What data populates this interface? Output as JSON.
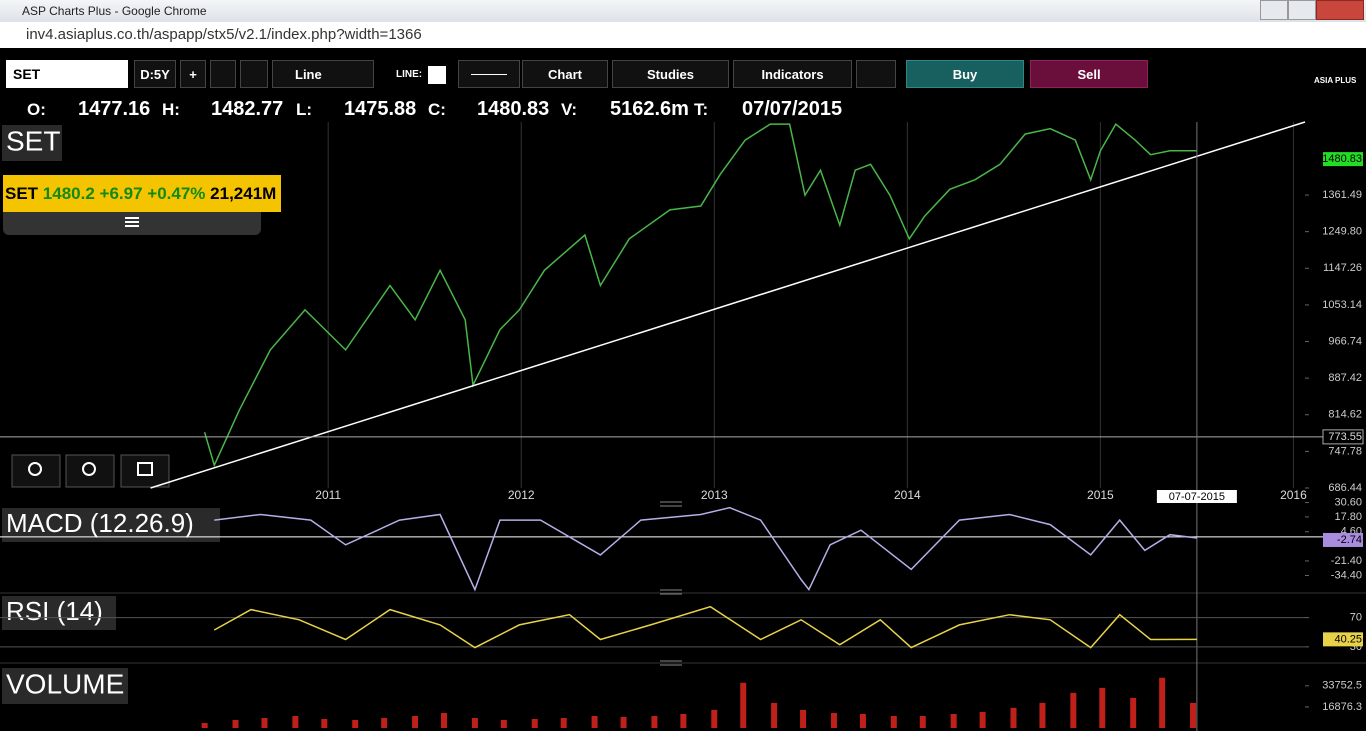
{
  "browser": {
    "title": "ASP Charts Plus - Google Chrome",
    "url": "inv4.asiaplus.co.th/aspapp/stx5/v2.1/index.php?width=1366"
  },
  "toolbar": {
    "symbol": "SET",
    "period": "D:5Y",
    "plus": "+",
    "line": "Line",
    "line_label": "LINE:",
    "chart": "Chart",
    "studies": "Studies",
    "indicators": "Indicators",
    "buy": "Buy",
    "sell": "Sell",
    "logo": "ASIA PLUS"
  },
  "quote": {
    "open_label": "O:",
    "open": 1477.16,
    "high_label": "H:",
    "high": 1482.77,
    "low_label": "L:",
    "low": 1475.88,
    "close_label": "C:",
    "close": 1480.83,
    "volume_label": "V:",
    "volume": "5162.6m",
    "time_label": "T:",
    "time": "07/07/2015"
  },
  "ticker": {
    "symbol": "SET",
    "last": 1480.2,
    "change": "+6.97",
    "percent": "+0.47%",
    "value": "21,241M"
  },
  "chart_data": [
    {
      "type": "line",
      "title": "SET",
      "log": true,
      "color": "#49b649",
      "x": [
        2010.36,
        2010.41,
        2010.54,
        2010.7,
        2010.88,
        2011.09,
        2011.32,
        2011.45,
        2011.58,
        2011.71,
        2011.75,
        2011.89,
        2011.99,
        2012.12,
        2012.33,
        2012.41,
        2012.56,
        2012.77,
        2012.93,
        2013.03,
        2013.16,
        2013.29,
        2013.39,
        2013.47,
        2013.55,
        2013.65,
        2013.73,
        2013.81,
        2013.91,
        2014.01,
        2014.09,
        2014.22,
        2014.35,
        2014.48,
        2014.61,
        2014.74,
        2014.87,
        2014.95,
        2015.0,
        2015.08,
        2015.18,
        2015.26,
        2015.36,
        2015.5
      ],
      "values": [
        782,
        724,
        824,
        948,
        1041,
        948,
        1102,
        1017,
        1142,
        1017,
        873,
        994,
        1041,
        1142,
        1240,
        1102,
        1229,
        1315,
        1327,
        1428,
        1548,
        1607,
        1607,
        1361,
        1443,
        1269,
        1443,
        1463,
        1361,
        1229,
        1296,
        1380,
        1411,
        1463,
        1570,
        1590,
        1548,
        1411,
        1510,
        1607,
        1548,
        1496,
        1510,
        1510
      ],
      "xlim": [
        2009.3,
        2016.06
      ],
      "xticks": [
        2011,
        2012,
        2013,
        2014,
        2015,
        2016
      ],
      "xgrid": true,
      "ylim": [
        686.44,
        1615
      ],
      "yticks": [
        1361.49,
        {
          "value": 1249.8,
          "label": "1249.80"
        },
        1147.26,
        1053.14,
        966.74,
        887.42,
        814.62,
        747.78,
        686.44
      ],
      "last_label": 1480.83,
      "last_label_color": "#22dd22",
      "level": 773.55,
      "trendline": {
        "x": [
          2010.08,
          2016.06
        ],
        "y": [
          686.44,
          1615
        ]
      },
      "cursor_x": 2015.5,
      "cursor_label": "07-07-2015"
    },
    {
      "type": "line",
      "title": "MACD (12.26.9)",
      "color": "#b7aee8",
      "x": [
        2010.41,
        2010.65,
        2010.91,
        2011.09,
        2011.37,
        2011.58,
        2011.76,
        2011.89,
        2012.1,
        2012.41,
        2012.62,
        2012.93,
        2013.08,
        2013.24,
        2013.45,
        2013.49,
        2013.6,
        2013.76,
        2014.02,
        2014.27,
        2014.53,
        2014.74,
        2014.95,
        2015.1,
        2015.23,
        2015.36,
        2015.5
      ],
      "values": [
        15,
        20,
        15,
        -7,
        15,
        20,
        -47,
        15,
        15,
        -16,
        15,
        20,
        26,
        15,
        -38,
        -47,
        -7,
        6,
        -29,
        15,
        20,
        11,
        -16,
        15,
        -12,
        2,
        -1
      ],
      "ylim": [
        -50,
        32
      ],
      "yticks": [
        {
          "value": 30.6,
          "label": "30.60"
        },
        {
          "value": 17.8,
          "label": "17.80"
        },
        {
          "value": 4.6,
          "label": "4.60"
        },
        {
          "value": -21.4,
          "label": "-21.40"
        },
        {
          "value": -34.4,
          "label": "-34.40"
        }
      ],
      "last_label": -2.74,
      "last_label_color": "#a98be0"
    },
    {
      "type": "line",
      "title": "RSI (14)",
      "color": "#e8d24a",
      "grid": true,
      "x": [
        2010.41,
        2010.6,
        2010.85,
        2011.09,
        2011.32,
        2011.58,
        2011.76,
        2011.99,
        2012.25,
        2012.41,
        2012.67,
        2012.98,
        2013.24,
        2013.45,
        2013.65,
        2013.86,
        2014.02,
        2014.27,
        2014.53,
        2014.74,
        2014.95,
        2015.1,
        2015.26,
        2015.5
      ],
      "values": [
        53,
        81,
        67,
        40,
        81,
        60,
        29,
        60,
        74,
        40,
        60,
        85,
        40,
        67,
        33,
        67,
        29,
        60,
        74,
        67,
        29,
        74,
        40,
        40.25
      ],
      "ylim": [
        12,
        90
      ],
      "yticks": [
        70,
        30
      ],
      "last_label": 40.25,
      "last_label_color": "#e8d24a"
    },
    {
      "type": "bar",
      "title": "VOLUME",
      "color": "#c0201a",
      "x": [
        2010.36,
        2010.52,
        2010.67,
        2010.83,
        2010.98,
        2011.14,
        2011.29,
        2011.45,
        2011.6,
        2011.76,
        2011.91,
        2012.07,
        2012.22,
        2012.38,
        2012.53,
        2012.69,
        2012.84,
        2013.0,
        2013.15,
        2013.31,
        2013.46,
        2013.62,
        2013.77,
        2013.93,
        2014.08,
        2014.24,
        2014.39,
        2014.55,
        2014.7,
        2014.86,
        2015.01,
        2015.17,
        2015.32,
        2015.48
      ],
      "values": [
        4000,
        6400,
        8000,
        9600,
        7200,
        6400,
        8000,
        9600,
        12000,
        8000,
        6400,
        7200,
        8000,
        9600,
        8800,
        9600,
        11200,
        14500,
        36200,
        20100,
        14500,
        12000,
        11200,
        9600,
        9600,
        11200,
        12900,
        16100,
        20100,
        28100,
        32100,
        24100,
        40200,
        20100
      ],
      "ylim": [
        0,
        48000
      ],
      "yticks": [
        33752.5,
        16876.3
      ]
    }
  ]
}
